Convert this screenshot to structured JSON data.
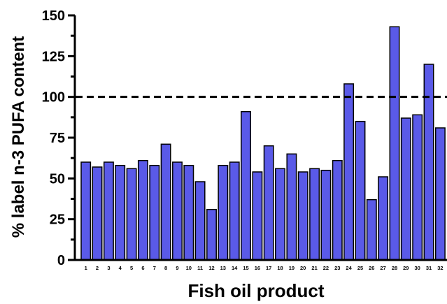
{
  "chart_data": {
    "type": "bar",
    "title": "",
    "xlabel": "Fish oil product",
    "ylabel": "% label n-3 PUFA content",
    "ylim": [
      0,
      150
    ],
    "yticks": [
      0,
      25,
      50,
      75,
      100,
      125,
      150
    ],
    "categories": [
      "1",
      "2",
      "3",
      "4",
      "5",
      "6",
      "7",
      "8",
      "9",
      "10",
      "11",
      "12",
      "13",
      "14",
      "15",
      "16",
      "17",
      "18",
      "19",
      "20",
      "21",
      "22",
      "23",
      "24",
      "25",
      "26",
      "27",
      "28",
      "29",
      "30",
      "31",
      "32"
    ],
    "values": [
      60,
      57,
      60,
      58,
      56,
      61,
      58,
      71,
      60,
      58,
      48,
      31,
      58,
      60,
      91,
      54,
      70,
      56,
      65,
      54,
      56,
      55,
      61,
      108,
      85,
      37,
      51,
      143,
      87,
      89,
      120,
      81
    ],
    "reference_line": {
      "y": 100,
      "style": "dashed"
    },
    "bar_color": "#5a5ae8",
    "grid": false,
    "legend": "none"
  }
}
